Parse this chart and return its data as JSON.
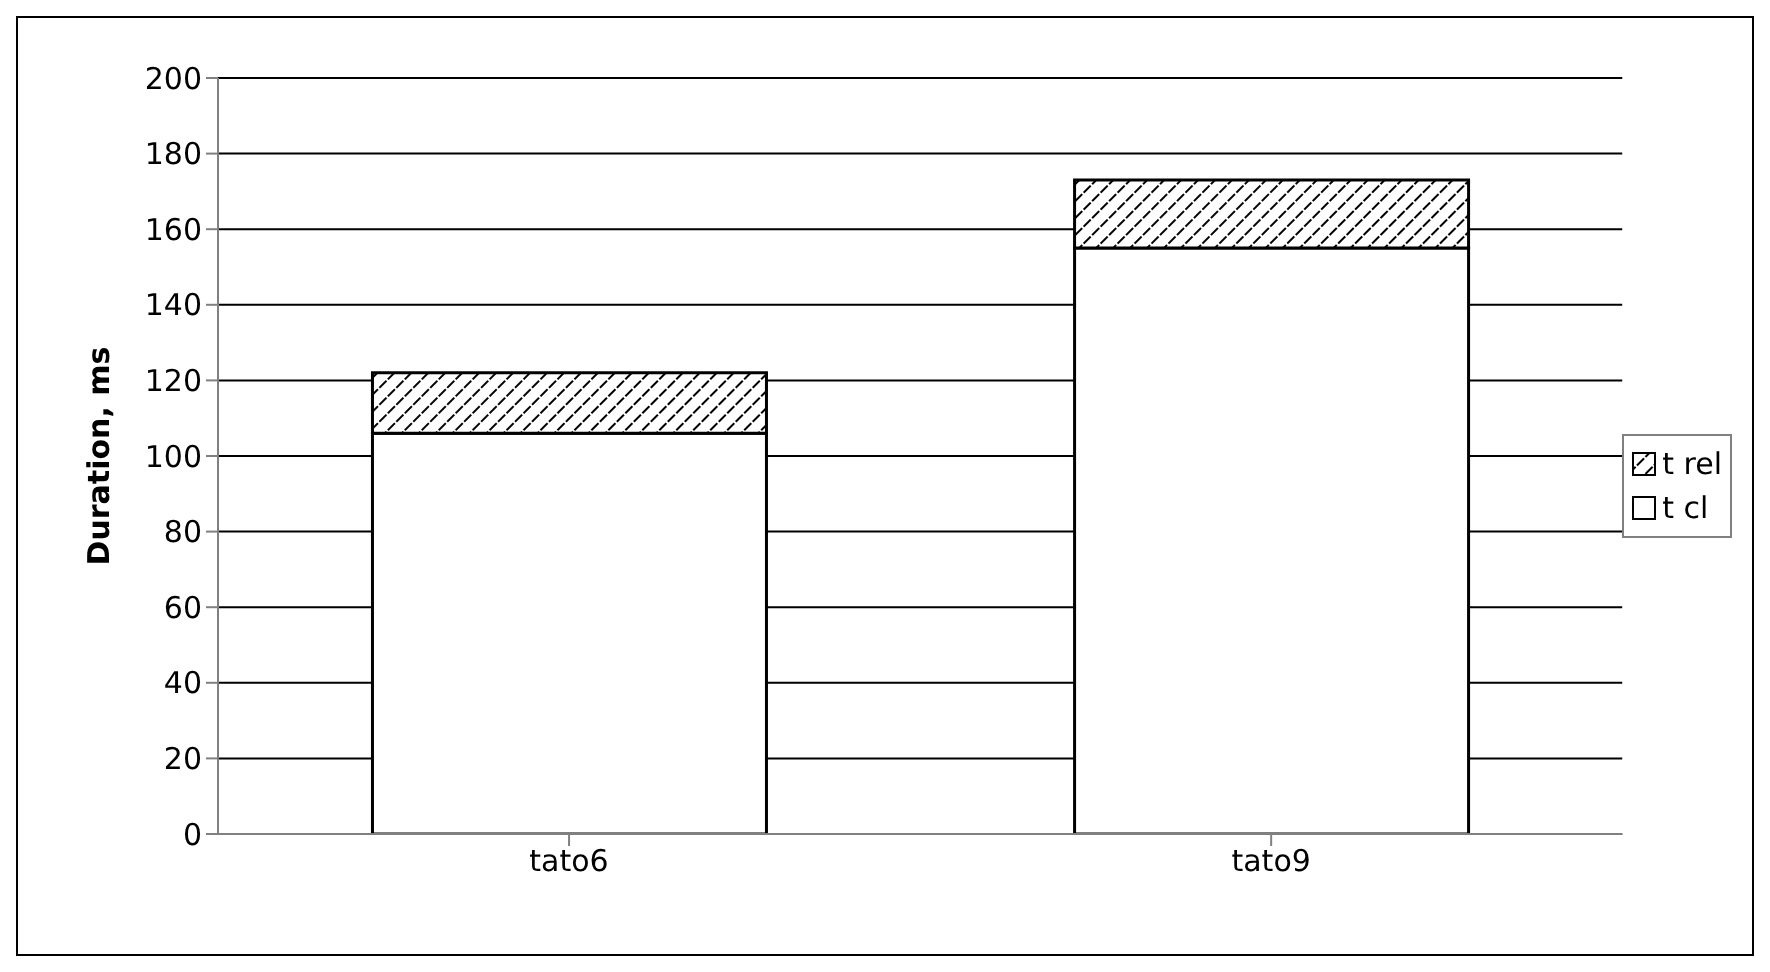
{
  "chart_data": {
    "type": "bar",
    "stacked": true,
    "ylabel": "Duration, ms",
    "categories": [
      "tato6",
      "tato9"
    ],
    "series": [
      {
        "name": "t cl",
        "color": "#ffffff",
        "values": [
          106,
          155
        ]
      },
      {
        "name": "t rel",
        "color": "#000000",
        "values": [
          16,
          18
        ]
      }
    ],
    "ylim": [
      0,
      200
    ],
    "yticks": [
      0,
      20,
      40,
      60,
      80,
      100,
      120,
      140,
      160,
      180,
      200
    ],
    "grid": "y",
    "legend": "right"
  }
}
